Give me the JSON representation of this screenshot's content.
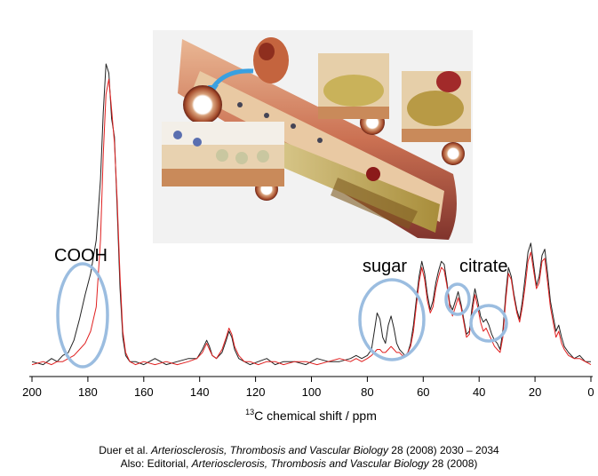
{
  "chart_data": {
    "type": "line",
    "xlabel_sup": "13",
    "xlabel": "C chemical shift / ppm",
    "xlim": [
      200,
      0
    ],
    "x_reversed": true,
    "x_ticks": [
      200,
      180,
      160,
      140,
      120,
      100,
      80,
      60,
      40,
      20,
      0
    ],
    "y_axis_shown": false,
    "grid": false,
    "series": [
      {
        "color": "#222222",
        "x": [
          200,
          196,
          193,
          191,
          189,
          187,
          185,
          183,
          181,
          179,
          177,
          175.5,
          174.5,
          173.5,
          172.5,
          171.5,
          170.5,
          169.5,
          168.5,
          167.5,
          166.5,
          165,
          163,
          160,
          156,
          152,
          148,
          144,
          141,
          139,
          137.5,
          136.5,
          135.5,
          134,
          132,
          130.5,
          129.5,
          128.5,
          127.5,
          126,
          124,
          122,
          119,
          116,
          113,
          110,
          106,
          102,
          98,
          94,
          90,
          86,
          84,
          82,
          80,
          78.5,
          77.5,
          76.5,
          75.5,
          74.5,
          73.5,
          72.5,
          71.5,
          70.5,
          69.5,
          68.5,
          67.5,
          66.5,
          65.5,
          64.5,
          63.5,
          62.5,
          61.5,
          60.5,
          59.5,
          58.5,
          57.5,
          56.5,
          55.5,
          54.5,
          53.5,
          52.5,
          51.5,
          50.5,
          49.5,
          48.5,
          47.5,
          46.5,
          45.5,
          44.5,
          43.5,
          42.5,
          41.5,
          40.5,
          39.5,
          38.5,
          37.5,
          36.5,
          35.5,
          34.5,
          33.5,
          32.5,
          31.5,
          30.5,
          29.5,
          28.5,
          27.5,
          26.5,
          25.5,
          24.5,
          23.5,
          22.5,
          21.5,
          20.5,
          19.5,
          18.5,
          17.5,
          16.5,
          15.5,
          14.5,
          13.5,
          12.5,
          11.5,
          10.5,
          9.5,
          8,
          6,
          4,
          2,
          0
        ],
        "y": [
          0.02,
          0.01,
          0.03,
          0.02,
          0.04,
          0.05,
          0.09,
          0.16,
          0.24,
          0.31,
          0.42,
          0.62,
          0.84,
          1.0,
          0.97,
          0.82,
          0.76,
          0.52,
          0.26,
          0.1,
          0.04,
          0.02,
          0.02,
          0.01,
          0.03,
          0.01,
          0.02,
          0.03,
          0.03,
          0.06,
          0.09,
          0.07,
          0.04,
          0.03,
          0.05,
          0.09,
          0.12,
          0.1,
          0.06,
          0.03,
          0.02,
          0.01,
          0.02,
          0.03,
          0.01,
          0.02,
          0.02,
          0.01,
          0.03,
          0.02,
          0.02,
          0.03,
          0.04,
          0.03,
          0.04,
          0.06,
          0.12,
          0.18,
          0.16,
          0.1,
          0.08,
          0.14,
          0.17,
          0.13,
          0.08,
          0.06,
          0.05,
          0.04,
          0.05,
          0.08,
          0.14,
          0.22,
          0.3,
          0.35,
          0.31,
          0.24,
          0.19,
          0.22,
          0.28,
          0.32,
          0.35,
          0.34,
          0.28,
          0.21,
          0.19,
          0.22,
          0.25,
          0.21,
          0.16,
          0.11,
          0.12,
          0.2,
          0.26,
          0.22,
          0.17,
          0.15,
          0.16,
          0.14,
          0.11,
          0.09,
          0.08,
          0.06,
          0.12,
          0.24,
          0.33,
          0.3,
          0.24,
          0.19,
          0.16,
          0.22,
          0.3,
          0.38,
          0.41,
          0.34,
          0.27,
          0.3,
          0.37,
          0.39,
          0.31,
          0.22,
          0.17,
          0.12,
          0.14,
          0.1,
          0.07,
          0.05,
          0.03,
          0.04,
          0.02,
          0.02
        ]
      },
      {
        "color": "#e02020",
        "x": [
          200,
          196,
          193,
          191,
          189,
          187,
          185,
          183,
          181,
          179,
          177,
          175.5,
          174.5,
          173.5,
          172.5,
          171.5,
          170.5,
          169.5,
          168.5,
          167.5,
          166.5,
          165,
          163,
          160,
          156,
          152,
          148,
          144,
          141,
          139,
          137.5,
          136.5,
          135.5,
          134,
          132,
          130.5,
          129.5,
          128.5,
          127.5,
          126,
          124,
          122,
          119,
          116,
          113,
          110,
          106,
          102,
          98,
          94,
          90,
          86,
          84,
          82,
          80,
          78.5,
          77.5,
          76.5,
          75.5,
          74.5,
          73.5,
          72.5,
          71.5,
          70.5,
          69.5,
          68.5,
          67.5,
          66.5,
          65.5,
          64.5,
          63.5,
          62.5,
          61.5,
          60.5,
          59.5,
          58.5,
          57.5,
          56.5,
          55.5,
          54.5,
          53.5,
          52.5,
          51.5,
          50.5,
          49.5,
          48.5,
          47.5,
          46.5,
          45.5,
          44.5,
          43.5,
          42.5,
          41.5,
          40.5,
          39.5,
          38.5,
          37.5,
          36.5,
          35.5,
          34.5,
          33.5,
          32.5,
          31.5,
          30.5,
          29.5,
          28.5,
          27.5,
          26.5,
          25.5,
          24.5,
          23.5,
          22.5,
          21.5,
          20.5,
          19.5,
          18.5,
          17.5,
          16.5,
          15.5,
          14.5,
          13.5,
          12.5,
          11.5,
          10.5,
          9.5,
          8,
          6,
          4,
          2,
          0
        ],
        "y": [
          0.01,
          0.02,
          0.01,
          0.02,
          0.02,
          0.03,
          0.04,
          0.06,
          0.08,
          0.12,
          0.2,
          0.42,
          0.7,
          0.9,
          0.95,
          0.85,
          0.74,
          0.55,
          0.3,
          0.12,
          0.05,
          0.02,
          0.01,
          0.02,
          0.01,
          0.02,
          0.01,
          0.02,
          0.03,
          0.05,
          0.08,
          0.06,
          0.04,
          0.03,
          0.06,
          0.1,
          0.13,
          0.11,
          0.07,
          0.04,
          0.02,
          0.02,
          0.01,
          0.02,
          0.02,
          0.01,
          0.02,
          0.02,
          0.01,
          0.02,
          0.03,
          0.02,
          0.03,
          0.02,
          0.03,
          0.04,
          0.05,
          0.06,
          0.06,
          0.05,
          0.05,
          0.06,
          0.07,
          0.06,
          0.05,
          0.05,
          0.04,
          0.04,
          0.05,
          0.07,
          0.12,
          0.2,
          0.28,
          0.33,
          0.29,
          0.22,
          0.18,
          0.2,
          0.26,
          0.3,
          0.33,
          0.32,
          0.27,
          0.2,
          0.17,
          0.2,
          0.23,
          0.2,
          0.15,
          0.1,
          0.11,
          0.18,
          0.24,
          0.2,
          0.15,
          0.12,
          0.13,
          0.11,
          0.09,
          0.07,
          0.06,
          0.05,
          0.1,
          0.22,
          0.31,
          0.29,
          0.23,
          0.18,
          0.15,
          0.2,
          0.27,
          0.35,
          0.38,
          0.32,
          0.26,
          0.28,
          0.35,
          0.36,
          0.28,
          0.2,
          0.15,
          0.1,
          0.12,
          0.08,
          0.06,
          0.04,
          0.03,
          0.03,
          0.02,
          0.01
        ]
      }
    ],
    "annotations": [
      "COOH",
      "sugar",
      "citrate"
    ]
  },
  "inset": {
    "description_icon": "artery-plaque-illustration"
  },
  "caption": {
    "line1_prefix": "Duer et al. ",
    "line1_journal": "Arteriosclerosis, Thrombosis and Vascular Biology",
    "line1_suffix": " 28 (2008) 2030 – 2034",
    "line2_prefix": "Also: Editorial, ",
    "line2_journal": "Arteriosclerosis, Thrombosis and Vascular Biology",
    "line2_suffix": " 28 (2008)"
  },
  "colors": {
    "black_series": "#222222",
    "red_series": "#e02020",
    "ellipse": "#9bbde0"
  }
}
